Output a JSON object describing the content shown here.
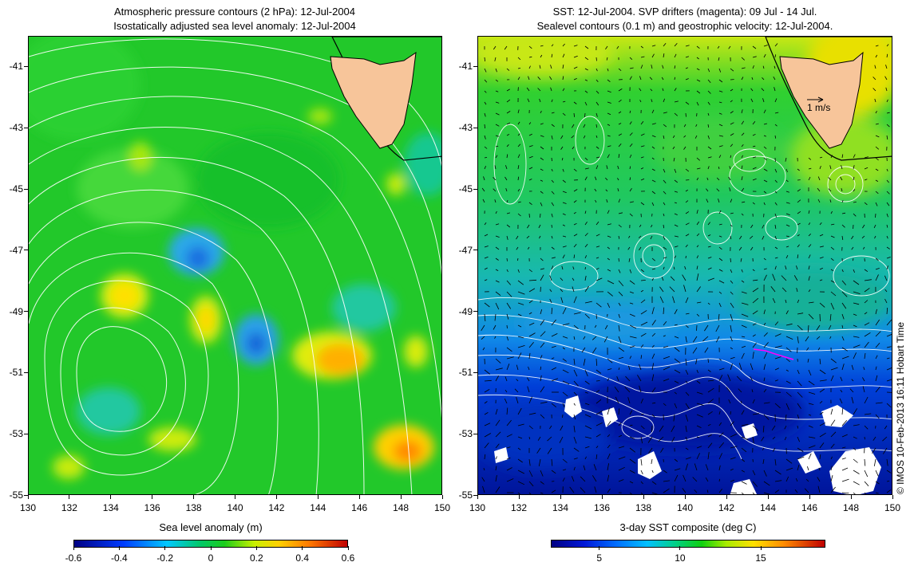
{
  "left_panel": {
    "title_line1": "Atmospheric pressure contours (2 hPa): 12-Jul-2004",
    "title_line2": "Isostatically adjusted sea level anomaly: 12-Jul-2004",
    "colorbar_title": "Sea level anomaly (m)",
    "colorbar_ticks": [
      "-0.6",
      "-0.4",
      "-0.2",
      "0",
      "0.2",
      "0.4",
      "0.6"
    ],
    "colorbar_range": [
      -0.6,
      0.6
    ],
    "land_color": "#f7c59a",
    "contour_color": "#ffffff"
  },
  "right_panel": {
    "title_line1": "SST: 12-Jul-2004. SVP drifters (magenta): 09 Jul - 14 Jul.",
    "title_line2": "Sealevel contours (0.1 m) and geostrophic velocity: 12-Jul-2004.",
    "colorbar_title": "3-day SST composite (deg C)",
    "colorbar_ticks": [
      "5",
      "10",
      "15"
    ],
    "colorbar_range": [
      2,
      19
    ],
    "velocity_scale_label": "1 m/s",
    "drifter_color": "#ff00ff",
    "land_color": "#f7c59a"
  },
  "axes": {
    "x_ticks": [
      "130",
      "132",
      "134",
      "136",
      "138",
      "140",
      "142",
      "144",
      "146",
      "148",
      "150"
    ],
    "x_values": [
      130,
      132,
      134,
      136,
      138,
      140,
      142,
      144,
      146,
      148,
      150
    ],
    "y_ticks": [
      "-41",
      "-43",
      "-45",
      "-47",
      "-49",
      "-51",
      "-53",
      "-55"
    ],
    "y_values": [
      -41,
      -43,
      -45,
      -47,
      -49,
      -51,
      -53,
      -55
    ],
    "lon_range": [
      130,
      150
    ],
    "lat_range": [
      -40,
      -55
    ]
  },
  "copyright": "© IMOS 10-Feb-2013 16:11 Hobart Time"
}
